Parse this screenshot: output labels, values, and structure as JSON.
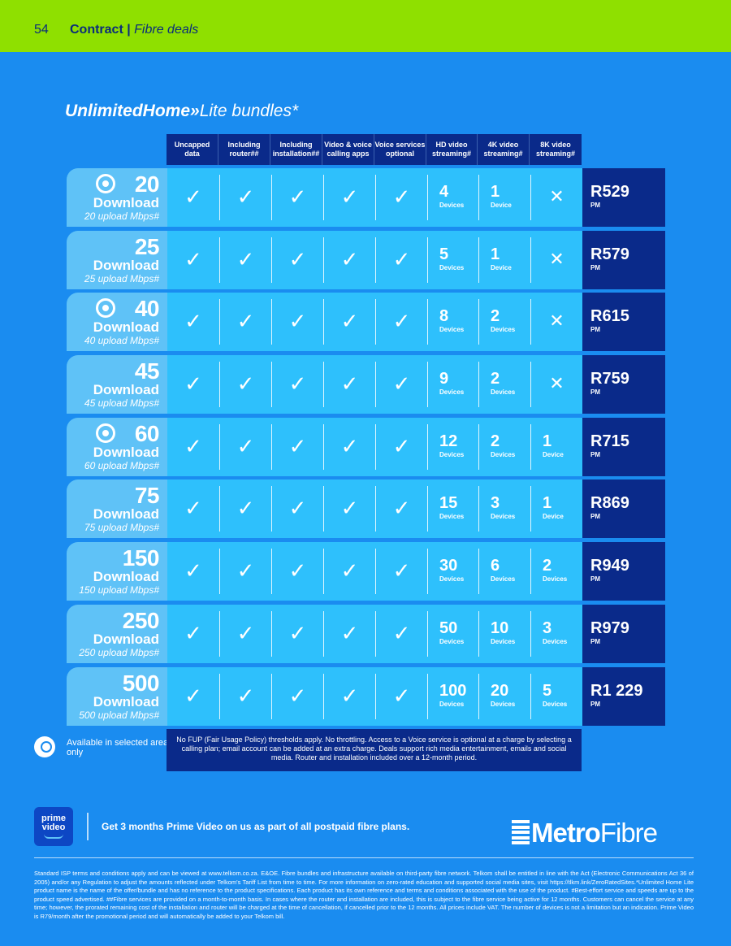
{
  "header": {
    "page_number": "54",
    "section": "Contract",
    "subsection": "Fibre deals"
  },
  "title": {
    "bold": "UnlimitedHome»",
    "rest": "Lite bundles*"
  },
  "columns": [
    "Uncapped data",
    "Including router##",
    "Including installation##",
    "Video & voice calling apps",
    "Voice services optional",
    "HD video streaming#",
    "4K video streaming#",
    "8K video streaming#"
  ],
  "device_label": "Devices",
  "device_label_single": "Device",
  "download_label": "Download",
  "pm_label": "PM",
  "colors": {
    "header_bar": "#8fe000",
    "background": "#1a8cf0",
    "dark_navy": "#0a2a8a",
    "cell_blue": "#2ec0fc",
    "label_blue": "#5fc2f7"
  },
  "rows": [
    {
      "speed": "20",
      "upload": "20 upload Mbps#",
      "hd": "4",
      "hd_unit": "Devices",
      "k4": "1",
      "k4_unit": "Device",
      "k8": "",
      "k8_unit": "",
      "price": "R529",
      "pin": true
    },
    {
      "speed": "25",
      "upload": "25 upload Mbps#",
      "hd": "5",
      "hd_unit": "Devices",
      "k4": "1",
      "k4_unit": "Device",
      "k8": "",
      "k8_unit": "",
      "price": "R579",
      "pin": false
    },
    {
      "speed": "40",
      "upload": "40 upload Mbps#",
      "hd": "8",
      "hd_unit": "Devices",
      "k4": "2",
      "k4_unit": "Devices",
      "k8": "",
      "k8_unit": "",
      "price": "R615",
      "pin": true
    },
    {
      "speed": "45",
      "upload": "45 upload Mbps#",
      "hd": "9",
      "hd_unit": "Devices",
      "k4": "2",
      "k4_unit": "Devices",
      "k8": "",
      "k8_unit": "",
      "price": "R759",
      "pin": false
    },
    {
      "speed": "60",
      "upload": "60 upload Mbps#",
      "hd": "12",
      "hd_unit": "Devices",
      "k4": "2",
      "k4_unit": "Devices",
      "k8": "1",
      "k8_unit": "Device",
      "price": "R715",
      "pin": true
    },
    {
      "speed": "75",
      "upload": "75 upload Mbps#",
      "hd": "15",
      "hd_unit": "Devices",
      "k4": "3",
      "k4_unit": "Devices",
      "k8": "1",
      "k8_unit": "Device",
      "price": "R869",
      "pin": false
    },
    {
      "speed": "150",
      "upload": "150 upload Mbps#",
      "hd": "30",
      "hd_unit": "Devices",
      "k4": "6",
      "k4_unit": "Devices",
      "k8": "2",
      "k8_unit": "Devices",
      "price": "R949",
      "pin": false
    },
    {
      "speed": "250",
      "upload": "250 upload Mbps#",
      "hd": "50",
      "hd_unit": "Devices",
      "k4": "10",
      "k4_unit": "Devices",
      "k8": "3",
      "k8_unit": "Devices",
      "price": "R979",
      "pin": false
    },
    {
      "speed": "500",
      "upload": "500 upload Mbps#",
      "hd": "100",
      "hd_unit": "Devices",
      "k4": "20",
      "k4_unit": "Devices",
      "k8": "5",
      "k8_unit": "Devices",
      "price": "R1 229",
      "pin": false
    }
  ],
  "availability": "Available in selected areas only",
  "note": "No FUP (Fair Usage Policy) thresholds apply. No throttling. Access to a Voice service is optional at a charge by selecting a calling plan; email account can be added at an extra charge. Deals support rich media entertainment, emails and social media. Router and installation included over a 12-month period.",
  "prime": {
    "line1": "prime",
    "line2": "video"
  },
  "promo": "Get 3 months Prime Video on us as part of all postpaid fibre plans.",
  "logo": {
    "part1": "Metro",
    "part2": "Fibre"
  },
  "legal": "Standard ISP terms and conditions apply and can be viewed at www.telkom.co.za. E&OE. Fibre bundles and infrastructure available on third-party fibre network. Telkom shall be entitled in line with the Act (Electronic Communications Act 36 of 2005) and/or any Regulation to adjust the amounts reflected under Telkom's Tariff List from time to time. For more information on zero-rated education and supported social media sites, visit https://tlkm.link/ZeroRatedSites.*Unlimited Home Lite product name is the name of the offer/bundle and has no reference to the product specifications. Each product has its own reference and terms and conditions associated with the use of the product. #Best-effort service and speeds are up to the product speed advertised. ##Fibre services are provided on a month-to-month basis. In cases where the router and installation are included, this is subject to the fibre service being active for 12 months. Customers can cancel the service at any time; however, the prorated remaining cost of the installation and router will be charged at the time of cancellation, if cancelled prior to the 12 months. All prices include VAT. The number of devices is not a limitation but an indication. Prime Video is R79/month after the promotional period and will automatically be added to your Telkom bill."
}
